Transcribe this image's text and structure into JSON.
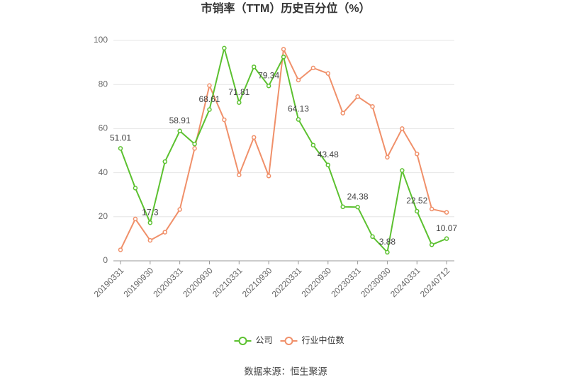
{
  "chart_data": {
    "type": "line",
    "title": "市销率（TTM）历史百分位（%）",
    "source": "数据来源：恒生聚源",
    "categories": [
      "20190331",
      null,
      "20190930",
      null,
      "20200331",
      null,
      "20200930",
      null,
      "20210331",
      null,
      "20210930",
      null,
      "20220331",
      null,
      "20220930",
      null,
      "20230331",
      null,
      "20230930",
      null,
      "20240331",
      null,
      "20240712"
    ],
    "series": [
      {
        "name": "公司",
        "color": "#5cc130",
        "values": [
          51.01,
          33,
          17.3,
          45,
          58.91,
          53,
          68.61,
          96.5,
          71.81,
          88,
          79.34,
          92.5,
          64.13,
          52.5,
          43.48,
          24.5,
          24.38,
          11,
          3.88,
          41,
          22.52,
          7.3,
          10.07
        ]
      },
      {
        "name": "行业中位数",
        "color": "#f0906a",
        "values": [
          5,
          19,
          9.3,
          13,
          23.3,
          51,
          79.5,
          64,
          39,
          56,
          38.5,
          96,
          82,
          87.5,
          85,
          67,
          74.5,
          70,
          47,
          60,
          48.5,
          23.5,
          22
        ]
      }
    ],
    "ylim": [
      0,
      100
    ],
    "yticks": [
      0,
      20,
      40,
      60,
      80,
      100
    ],
    "grid": true,
    "legend": "bottom"
  }
}
